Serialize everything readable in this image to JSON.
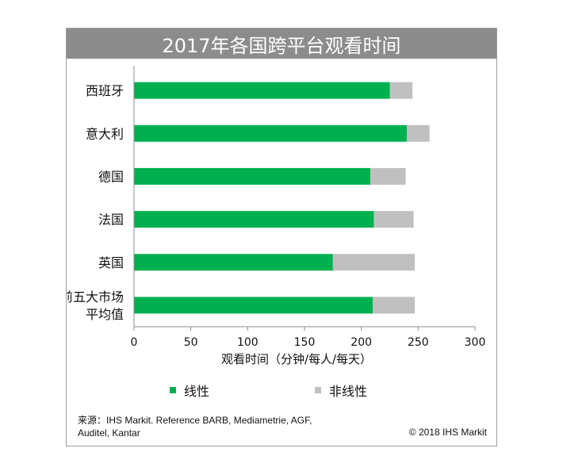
{
  "chart_data": {
    "type": "bar",
    "orientation": "horizontal",
    "stacked": true,
    "title": "2017年各国跨平台观看时间",
    "xlabel": "观看时间（分钟/每人/每天）",
    "ylabel": "",
    "xlim": [
      0,
      300
    ],
    "xticks": [
      0,
      50,
      100,
      150,
      200,
      250,
      300
    ],
    "grid": false,
    "legend_position": "bottom",
    "categories": [
      "西班牙",
      "意大利",
      "德国",
      "法国",
      "英国",
      "前五大市场平均值"
    ],
    "category_lines": [
      [
        "西班牙"
      ],
      [
        "意大利"
      ],
      [
        "德国"
      ],
      [
        "法国"
      ],
      [
        "英国"
      ],
      [
        "前五大市场",
        "平均值"
      ]
    ],
    "series": [
      {
        "name": "线性",
        "color": "#00b050",
        "values": [
          225,
          240,
          208,
          211,
          175,
          210
        ]
      },
      {
        "name": "非线性",
        "color": "#c0c0c0",
        "values": [
          20,
          20,
          31,
          35,
          72,
          37
        ]
      }
    ]
  },
  "source": "来源：IHS Markit. Reference BARB, Mediametrie, AGF, Auditel, Kantar",
  "copyright": "© 2018 IHS Markit"
}
